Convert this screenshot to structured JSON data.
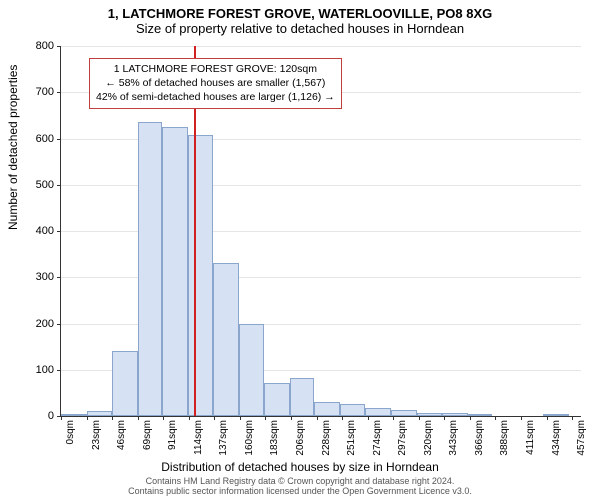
{
  "title": "1, LATCHMORE FOREST GROVE, WATERLOOVILLE, PO8 8XG",
  "subtitle": "Size of property relative to detached houses in Horndean",
  "ylabel": "Number of detached properties",
  "xlabel": "Distribution of detached houses by size in Horndean",
  "chart": {
    "type": "histogram",
    "ylim": [
      0,
      800
    ],
    "ytick_step": 100,
    "xlim": [
      0,
      468
    ],
    "xtick_step": 23,
    "bar_fill": "#d6e1f3",
    "bar_border": "#8aa6cc",
    "grid_color": "#e6e6e6",
    "marker_color": "#d02020",
    "marker_x": 120,
    "bars": [
      {
        "x0": 0,
        "x1": 23,
        "y": 4
      },
      {
        "x0": 23,
        "x1": 46,
        "y": 10
      },
      {
        "x0": 46,
        "x1": 69,
        "y": 140
      },
      {
        "x0": 69,
        "x1": 91,
        "y": 635
      },
      {
        "x0": 91,
        "x1": 114,
        "y": 625
      },
      {
        "x0": 114,
        "x1": 137,
        "y": 608
      },
      {
        "x0": 137,
        "x1": 160,
        "y": 330
      },
      {
        "x0": 160,
        "x1": 183,
        "y": 200
      },
      {
        "x0": 183,
        "x1": 206,
        "y": 72
      },
      {
        "x0": 206,
        "x1": 228,
        "y": 82
      },
      {
        "x0": 228,
        "x1": 251,
        "y": 30
      },
      {
        "x0": 251,
        "x1": 274,
        "y": 25
      },
      {
        "x0": 274,
        "x1": 297,
        "y": 17
      },
      {
        "x0": 297,
        "x1": 320,
        "y": 14
      },
      {
        "x0": 320,
        "x1": 343,
        "y": 6
      },
      {
        "x0": 343,
        "x1": 366,
        "y": 6
      },
      {
        "x0": 366,
        "x1": 388,
        "y": 4
      },
      {
        "x0": 388,
        "x1": 411,
        "y": 0
      },
      {
        "x0": 411,
        "x1": 434,
        "y": 0
      },
      {
        "x0": 434,
        "x1": 457,
        "y": 3
      }
    ],
    "xtick_labels": [
      "0sqm",
      "23sqm",
      "46sqm",
      "69sqm",
      "91sqm",
      "114sqm",
      "137sqm",
      "160sqm",
      "183sqm",
      "206sqm",
      "228sqm",
      "251sqm",
      "274sqm",
      "297sqm",
      "320sqm",
      "343sqm",
      "366sqm",
      "388sqm",
      "411sqm",
      "434sqm",
      "457sqm"
    ]
  },
  "info_box": {
    "line1": "1 LATCHMORE FOREST GROVE: 120sqm",
    "line2": "← 58% of detached houses are smaller (1,567)",
    "line3": "42% of semi-detached houses are larger (1,126) →"
  },
  "footer": {
    "line1": "Contains HM Land Registry data © Crown copyright and database right 2024.",
    "line2": "Contains public sector information licensed under the Open Government Licence v3.0."
  }
}
